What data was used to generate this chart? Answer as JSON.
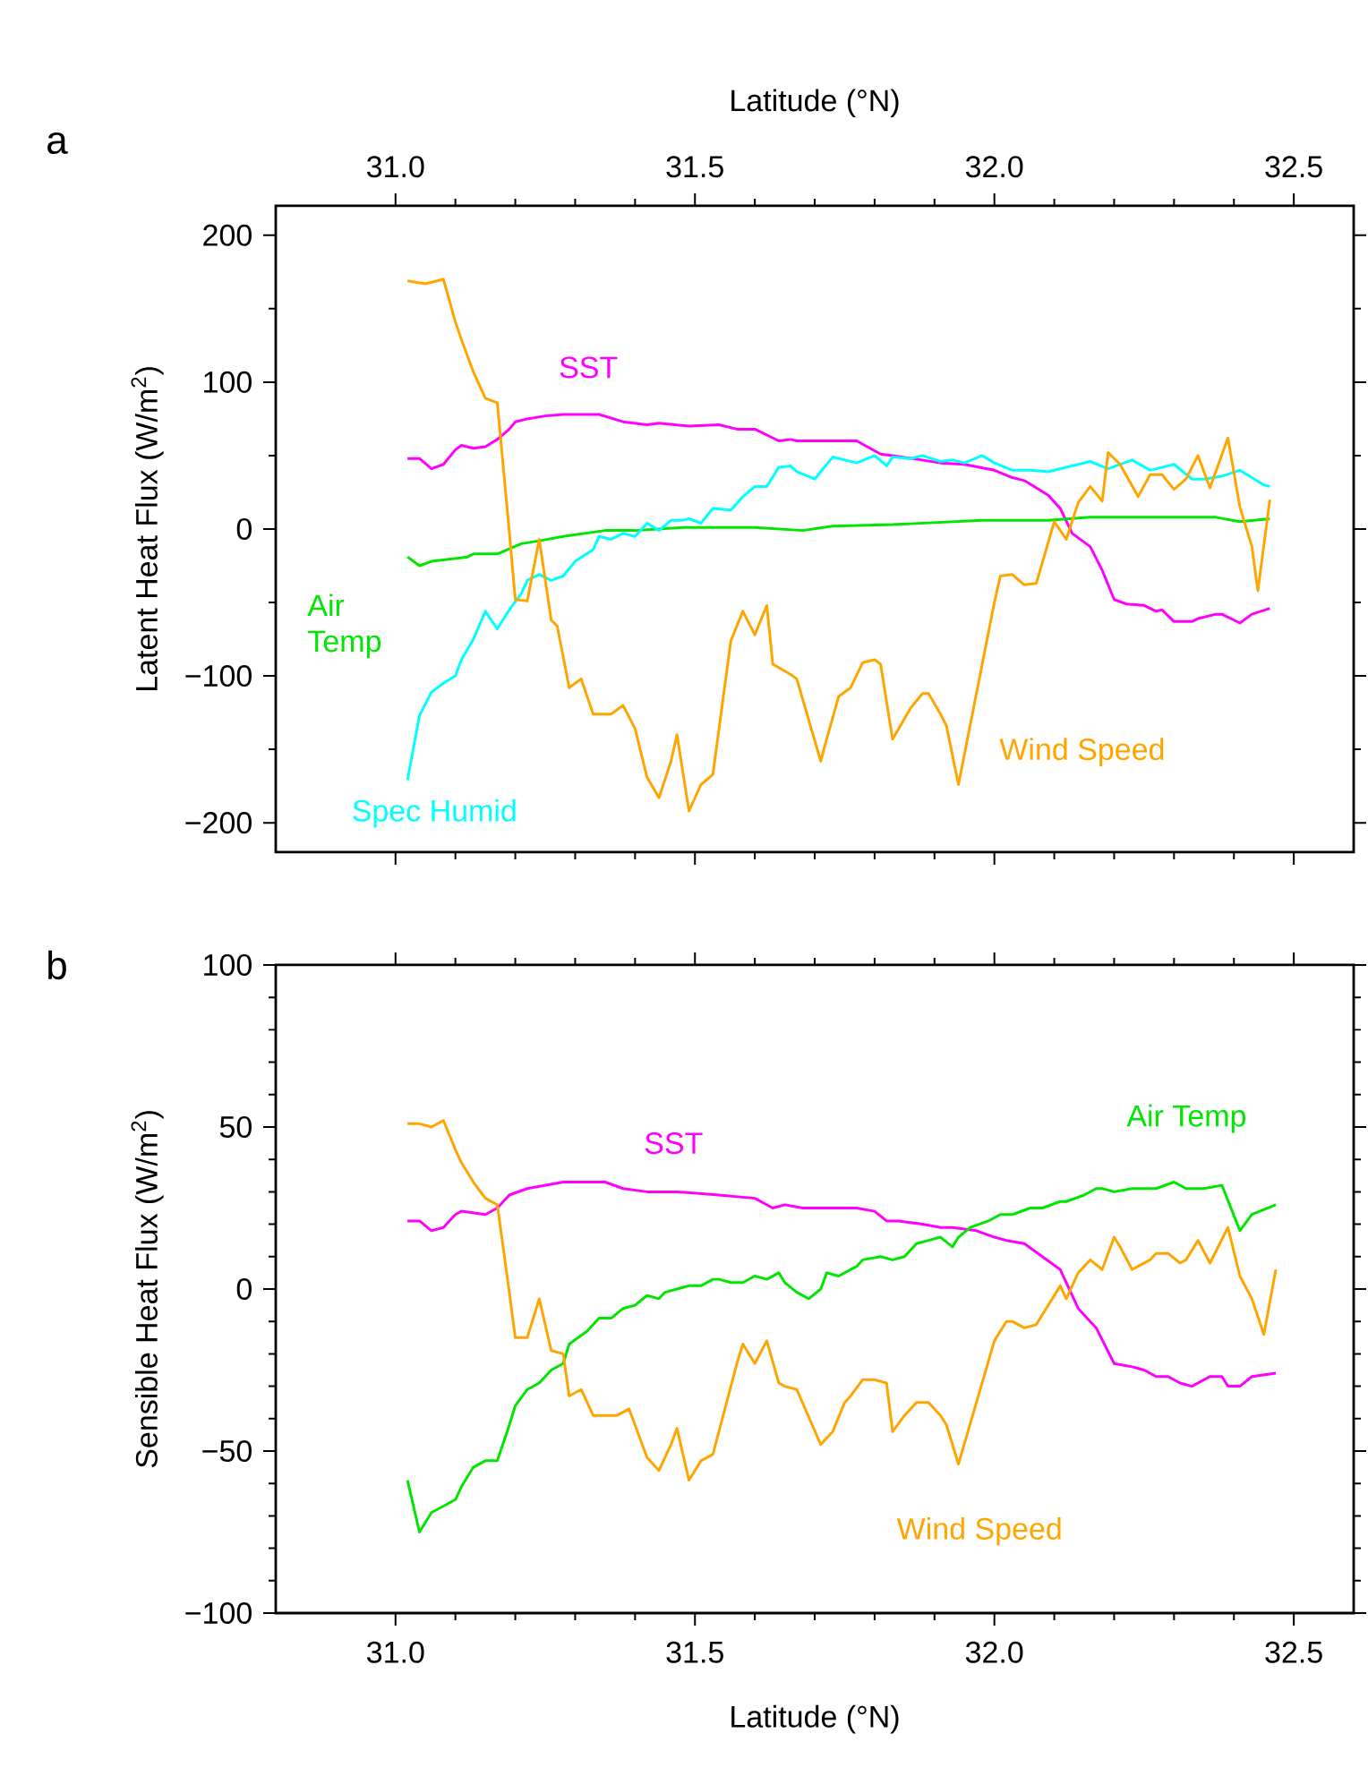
{
  "chart_data": [
    {
      "type": "line",
      "xlabel": "Latitude (°N)",
      "ylabel": "Latent Heat Flux (W/m$^{2}$)",
      "xlim": [
        30.8,
        32.6
      ],
      "ylim": [
        -220,
        220
      ],
      "xticks": [
        {
          "value": 31.0,
          "label": "31.0"
        },
        {
          "value": 31.5,
          "label": "31.5"
        },
        {
          "value": 32.0,
          "label": "32.0"
        },
        {
          "value": 32.5,
          "label": "32.5"
        }
      ],
      "yticks": [
        {
          "value": -200,
          "label": "−200"
        },
        {
          "value": -100,
          "label": "−100"
        },
        0,
        100,
        200
      ],
      "annotations": [
        "a"
      ],
      "series": [
        {
          "name": "SST",
          "color": "#ff00ff",
          "x": [
            31.02,
            31.04,
            31.06,
            31.08,
            31.1,
            31.11,
            31.13,
            31.15,
            31.17,
            31.19,
            31.2,
            31.22,
            31.25,
            31.28,
            31.34,
            31.38,
            31.42,
            31.44,
            31.49,
            31.54,
            31.57,
            31.6,
            31.64,
            31.66,
            31.67,
            31.77,
            31.81,
            31.83,
            31.91,
            31.95,
            32.0,
            32.03,
            32.05,
            32.09,
            32.11,
            32.13,
            32.16,
            32.18,
            32.2,
            32.22,
            32.25,
            32.27,
            32.28,
            32.3,
            32.33,
            32.34,
            32.37,
            32.38,
            32.41,
            32.43,
            32.46
          ],
          "values": [
            48,
            48,
            41,
            44,
            54,
            57,
            55,
            56,
            61,
            68,
            73,
            75,
            77,
            78,
            78,
            73,
            71,
            72,
            70,
            71,
            68,
            68,
            60,
            61,
            60,
            60,
            51,
            50,
            45,
            44,
            40,
            35,
            33,
            23,
            14,
            -3,
            -12,
            -28,
            -48,
            -51,
            -52,
            -56,
            -55,
            -63,
            -63,
            -61,
            -58,
            -58,
            -64,
            -58,
            -54
          ]
        },
        {
          "name": "Air Temp",
          "color": "#00e600",
          "x": [
            31.02,
            31.04,
            31.06,
            31.12,
            31.13,
            31.17,
            31.21,
            31.24,
            31.28,
            31.35,
            31.4,
            31.48,
            31.6,
            31.68,
            31.73,
            31.83,
            31.98,
            32.09,
            32.16,
            32.37,
            32.41,
            32.46
          ],
          "values": [
            -19,
            -25,
            -22,
            -19,
            -17,
            -17,
            -10,
            -8,
            -5,
            -1,
            -1,
            1,
            1,
            -1,
            2,
            3,
            6,
            6,
            8,
            8,
            5,
            7
          ]
        },
        {
          "name": "Spec Humid",
          "color": "#00ffff",
          "x": [
            31.02,
            31.04,
            31.06,
            31.08,
            31.1,
            31.11,
            31.13,
            31.15,
            31.17,
            31.19,
            31.21,
            31.22,
            31.24,
            31.26,
            31.28,
            31.3,
            31.33,
            31.34,
            31.36,
            31.38,
            31.4,
            31.42,
            31.44,
            31.46,
            31.48,
            31.49,
            31.51,
            31.53,
            31.56,
            31.58,
            31.6,
            31.62,
            31.64,
            31.66,
            31.67,
            31.7,
            31.73,
            31.76,
            31.77,
            31.8,
            31.82,
            31.83,
            31.86,
            31.88,
            31.91,
            31.93,
            31.95,
            31.98,
            32.0,
            32.03,
            32.06,
            32.09,
            32.12,
            32.16,
            32.19,
            32.23,
            32.26,
            32.3,
            32.33,
            32.35,
            32.38,
            32.41,
            32.45,
            32.46
          ],
          "values": [
            -171,
            -127,
            -111,
            -105,
            -100,
            -89,
            -75,
            -56,
            -68,
            -55,
            -44,
            -35,
            -31,
            -35,
            -32,
            -22,
            -14,
            -5,
            -7,
            -3,
            -5,
            4,
            -1,
            6,
            6,
            7,
            4,
            14,
            13,
            22,
            29,
            29,
            42,
            43,
            39,
            34,
            49,
            46,
            45,
            50,
            43,
            49,
            48,
            50,
            46,
            47,
            45,
            50,
            45,
            40,
            40,
            39,
            42,
            46,
            41,
            47,
            40,
            44,
            34,
            34,
            36,
            40,
            30,
            29
          ]
        },
        {
          "name": "Wind Speed",
          "color": "#ffa500",
          "x": [
            31.02,
            31.05,
            31.08,
            31.1,
            31.11,
            31.13,
            31.15,
            31.17,
            31.19,
            31.2,
            31.22,
            31.24,
            31.26,
            31.27,
            31.29,
            31.31,
            31.33,
            31.36,
            31.38,
            31.4,
            31.42,
            31.44,
            31.46,
            31.47,
            31.49,
            31.51,
            31.53,
            31.56,
            31.58,
            31.6,
            31.62,
            31.63,
            31.66,
            31.67,
            31.71,
            31.72,
            31.74,
            31.76,
            31.78,
            31.8,
            31.81,
            31.83,
            31.86,
            31.88,
            31.89,
            31.91,
            31.92,
            31.94,
            32.0,
            32.01,
            32.03,
            32.05,
            32.07,
            32.1,
            32.12,
            32.14,
            32.16,
            32.18,
            32.19,
            32.21,
            32.24,
            32.26,
            32.28,
            32.3,
            32.32,
            32.34,
            32.36,
            32.39,
            32.41,
            32.43,
            32.44,
            32.46
          ],
          "values": [
            169,
            167,
            170,
            141,
            129,
            107,
            89,
            86,
            -2,
            -48,
            -49,
            -7,
            -62,
            -66,
            -108,
            -102,
            -126,
            -126,
            -120,
            -136,
            -169,
            -183,
            -158,
            -140,
            -192,
            -174,
            -167,
            -76,
            -56,
            -72,
            -52,
            -92,
            -99,
            -102,
            -158,
            -143,
            -114,
            -108,
            -91,
            -89,
            -92,
            -143,
            -122,
            -112,
            -112,
            -126,
            -134,
            -174,
            -50,
            -32,
            -31,
            -38,
            -37,
            5,
            -7,
            18,
            29,
            19,
            52,
            44,
            22,
            37,
            37,
            27,
            34,
            50,
            28,
            62,
            15,
            -12,
            -42,
            20
          ]
        }
      ]
    },
    {
      "type": "line",
      "xlabel": "Latitude (°N)",
      "ylabel": "Sensible Heat Flux (W/m$^{2}$)",
      "xlim": [
        30.8,
        32.6
      ],
      "ylim": [
        -100,
        100
      ],
      "xticks": [
        {
          "value": 31.0,
          "label": "31.0"
        },
        {
          "value": 31.5,
          "label": "31.5"
        },
        {
          "value": 32.0,
          "label": "32.0"
        },
        {
          "value": 32.5,
          "label": "32.5"
        }
      ],
      "yticks": [
        {
          "value": -100,
          "label": "−100"
        },
        {
          "value": -50,
          "label": "−50"
        },
        0,
        50,
        100
      ],
      "annotations": [
        "b"
      ],
      "series": [
        {
          "name": "SST",
          "color": "#ff00ff",
          "x": [
            31.02,
            31.04,
            31.06,
            31.08,
            31.1,
            31.11,
            31.15,
            31.17,
            31.19,
            31.22,
            31.28,
            31.35,
            31.38,
            31.42,
            31.47,
            31.54,
            31.6,
            31.63,
            31.65,
            31.68,
            31.77,
            31.8,
            31.82,
            31.84,
            31.88,
            31.91,
            31.93,
            31.97,
            32.0,
            32.02,
            32.05,
            32.08,
            32.11,
            32.14,
            32.17,
            32.2,
            32.23,
            32.25,
            32.27,
            32.29,
            32.31,
            32.33,
            32.36,
            32.38,
            32.39,
            32.41,
            32.43,
            32.47
          ],
          "values": [
            21,
            21,
            18,
            19,
            23,
            24,
            23,
            25,
            29,
            31,
            33,
            33,
            31,
            30,
            30,
            29,
            28,
            25,
            26,
            25,
            25,
            24,
            21,
            21,
            20,
            19,
            19,
            18,
            16,
            15,
            14,
            10,
            6,
            -6,
            -12,
            -23,
            -24,
            -25,
            -27,
            -27,
            -29,
            -30,
            -27,
            -27,
            -30,
            -30,
            -27,
            -26
          ]
        },
        {
          "name": "Air Temp",
          "color": "#00e600",
          "x": [
            31.02,
            31.04,
            31.06,
            31.1,
            31.11,
            31.13,
            31.15,
            31.17,
            31.19,
            31.2,
            31.22,
            31.24,
            31.26,
            31.28,
            31.29,
            31.32,
            31.34,
            31.36,
            31.38,
            31.4,
            31.42,
            31.44,
            31.45,
            31.47,
            31.49,
            31.51,
            31.53,
            31.54,
            31.56,
            31.58,
            31.6,
            31.62,
            31.64,
            31.65,
            31.67,
            31.69,
            31.71,
            31.72,
            31.74,
            31.77,
            31.78,
            31.81,
            31.83,
            31.85,
            31.87,
            31.89,
            31.91,
            31.93,
            31.94,
            31.96,
            31.99,
            32.01,
            32.03,
            32.06,
            32.08,
            32.11,
            32.12,
            32.15,
            32.17,
            32.18,
            32.2,
            32.23,
            32.27,
            32.3,
            32.32,
            32.35,
            32.38,
            32.41,
            32.43,
            32.47
          ],
          "values": [
            -59,
            -75,
            -69,
            -65,
            -61,
            -55,
            -53,
            -53,
            -42,
            -36,
            -31,
            -29,
            -25,
            -23,
            -17,
            -13,
            -9,
            -9,
            -6,
            -5,
            -2,
            -3,
            -1,
            0,
            1,
            1,
            3,
            3,
            2,
            2,
            4,
            3,
            5,
            2,
            -1,
            -3,
            0,
            5,
            4,
            7,
            9,
            10,
            9,
            10,
            14,
            15,
            16,
            13,
            16,
            19,
            21,
            23,
            23,
            25,
            25,
            27,
            27,
            29,
            31,
            31,
            30,
            31,
            31,
            33,
            31,
            31,
            32,
            18,
            23,
            26
          ]
        },
        {
          "name": "Wind Speed",
          "color": "#ffa500",
          "x": [
            31.02,
            31.04,
            31.06,
            31.08,
            31.1,
            31.11,
            31.13,
            31.15,
            31.17,
            31.19,
            31.2,
            31.22,
            31.24,
            31.26,
            31.28,
            31.29,
            31.31,
            31.33,
            31.35,
            31.37,
            31.39,
            31.4,
            31.42,
            31.44,
            31.46,
            31.47,
            31.49,
            31.51,
            31.53,
            31.57,
            31.58,
            31.6,
            31.62,
            31.64,
            31.65,
            31.67,
            31.71,
            31.73,
            31.75,
            31.76,
            31.78,
            31.8,
            31.82,
            31.83,
            31.85,
            31.87,
            31.89,
            31.91,
            31.92,
            31.94,
            32.0,
            32.02,
            32.03,
            32.05,
            32.07,
            32.11,
            32.12,
            32.14,
            32.16,
            32.18,
            32.2,
            32.21,
            32.23,
            32.26,
            32.27,
            32.29,
            32.31,
            32.32,
            32.34,
            32.36,
            32.39,
            32.41,
            32.43,
            32.45,
            32.47
          ],
          "values": [
            51,
            51,
            50,
            52,
            43,
            39,
            33,
            28,
            26,
            -1,
            -15,
            -15,
            -3,
            -19,
            -20,
            -33,
            -31,
            -39,
            -39,
            -39,
            -37,
            -42,
            -52,
            -56,
            -48,
            -43,
            -59,
            -53,
            -51,
            -23,
            -17,
            -23,
            -16,
            -29,
            -30,
            -31,
            -48,
            -44,
            -35,
            -33,
            -28,
            -28,
            -29,
            -44,
            -39,
            -35,
            -35,
            -39,
            -42,
            -54,
            -16,
            -10,
            -10,
            -12,
            -11,
            1,
            -3,
            5,
            9,
            6,
            16,
            13,
            6,
            9,
            11,
            11,
            8,
            9,
            15,
            8,
            19,
            4,
            -3,
            -14,
            6
          ]
        }
      ]
    }
  ]
}
